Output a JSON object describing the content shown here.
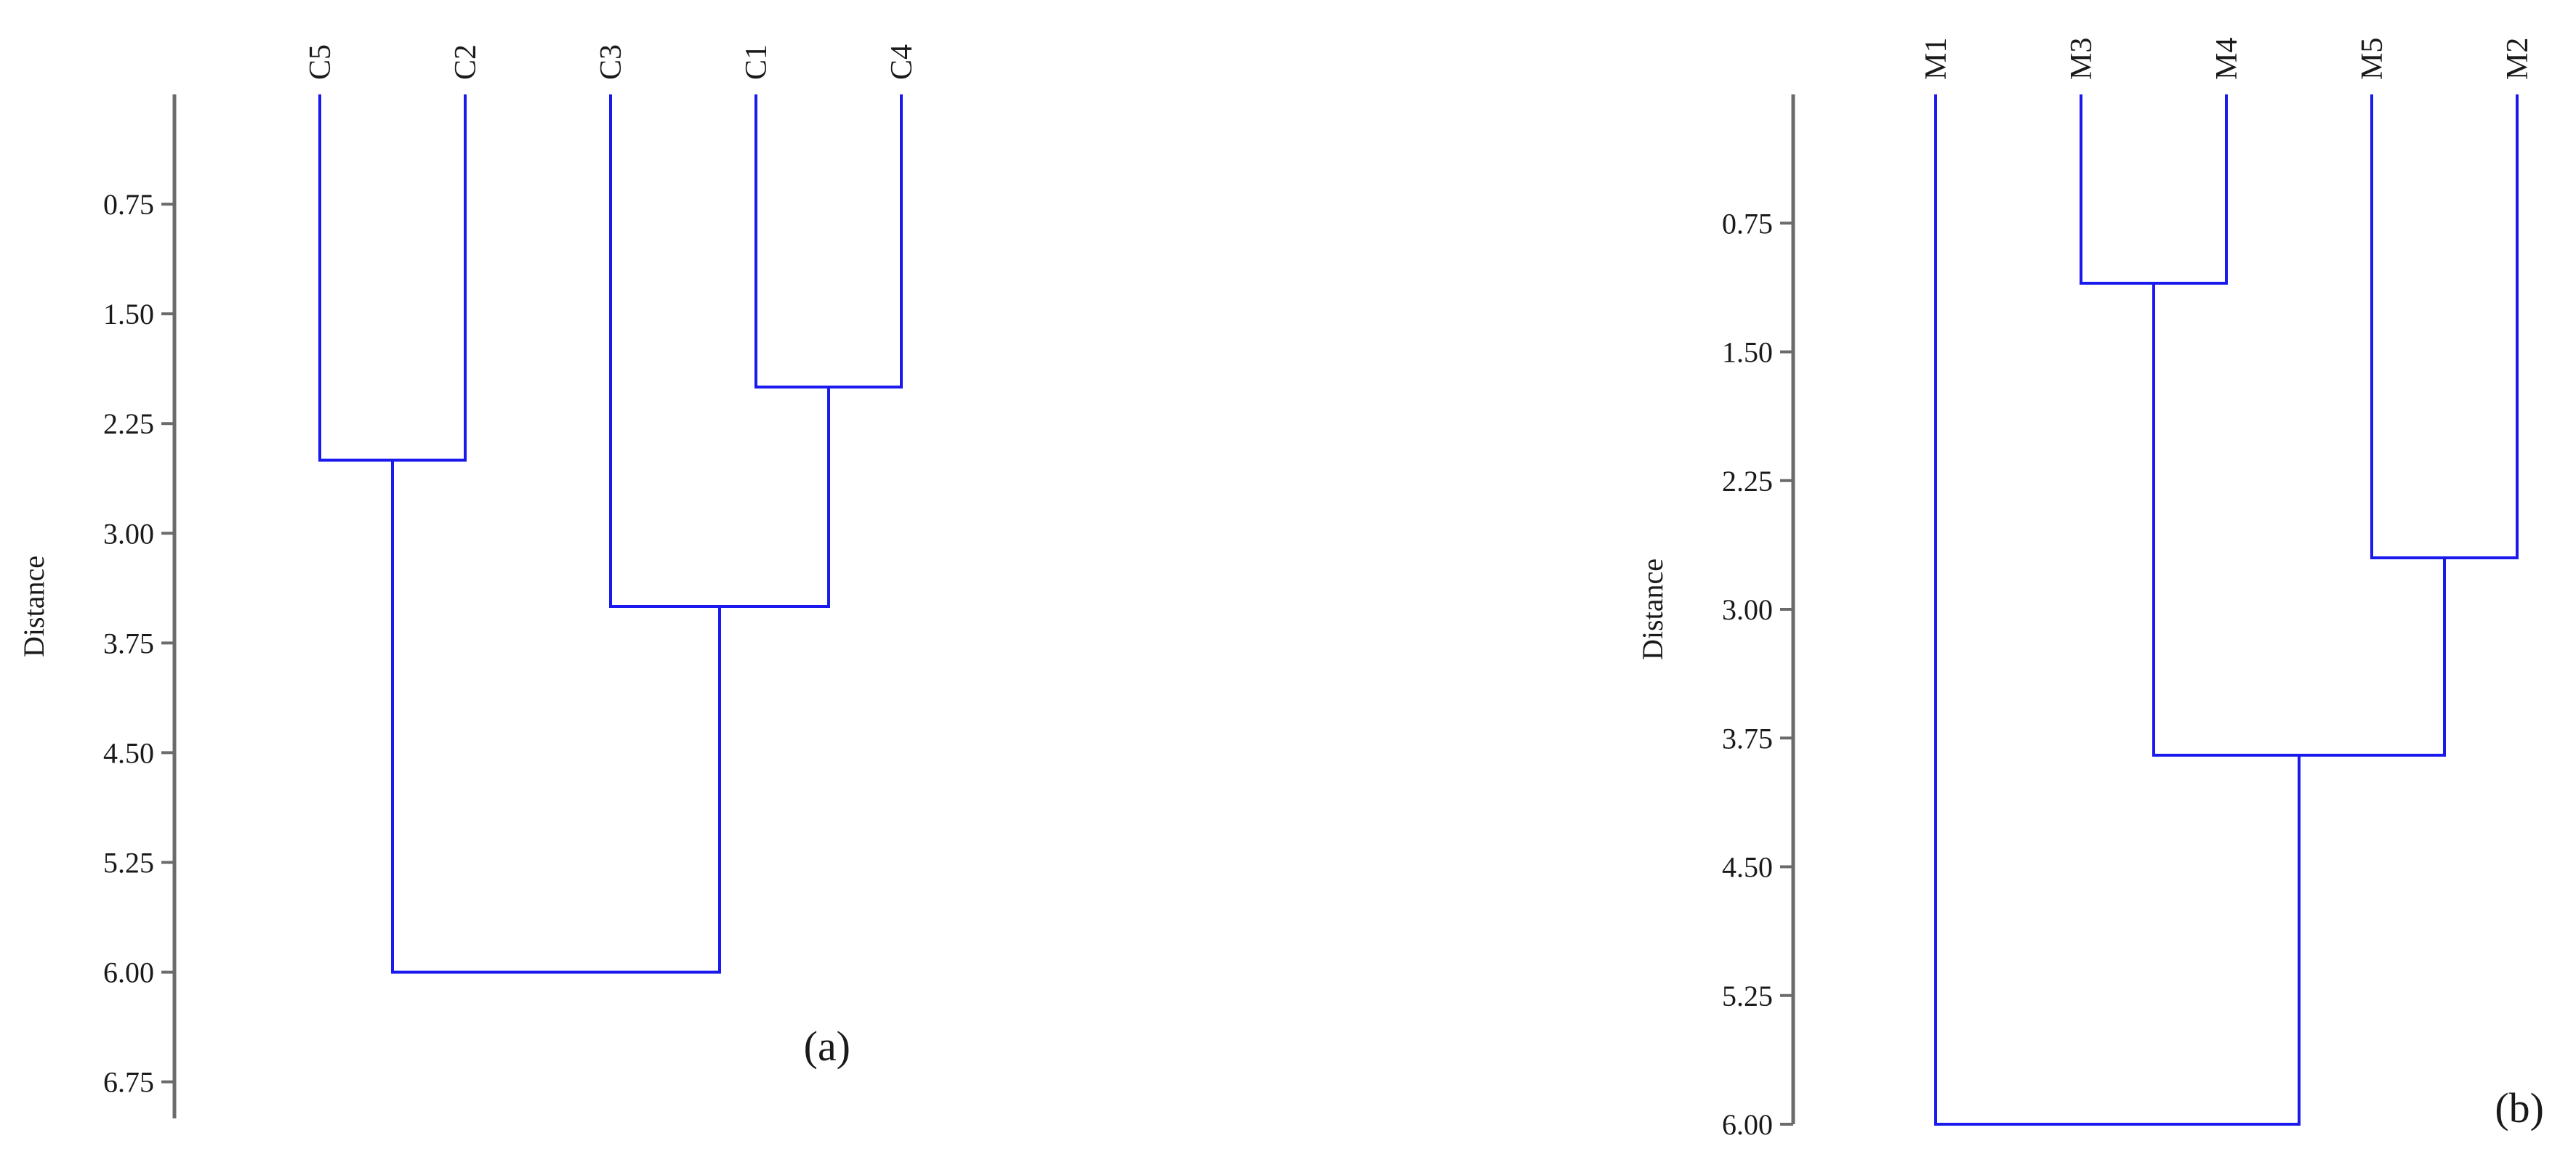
{
  "chart_data": [
    {
      "type": "dendrogram",
      "panel_label": "(a)",
      "ylabel": "Distance",
      "ylim": [
        0,
        7.0
      ],
      "y_ticks": [
        "0.75",
        "1.50",
        "2.25",
        "3.00",
        "3.75",
        "4.50",
        "5.25",
        "6.00",
        "6.75"
      ],
      "leaves": [
        "C5",
        "C2",
        "C3",
        "C1",
        "C4"
      ],
      "merges": [
        {
          "left": "C1",
          "right": "C4",
          "height": 2.0
        },
        {
          "left": "C5",
          "right": "C2",
          "height": 2.5
        },
        {
          "left": "C3",
          "right": "C1+C4",
          "height": 3.5
        },
        {
          "left": "C5+C2",
          "right": "C3+C1+C4",
          "height": 6.0
        }
      ],
      "line_color": "#1a1aee",
      "axis_color": "#6b6b6b"
    },
    {
      "type": "dendrogram",
      "panel_label": "(b)",
      "ylabel": "Distance",
      "ylim": [
        0,
        6.0
      ],
      "y_ticks": [
        "0.75",
        "1.50",
        "2.25",
        "3.00",
        "3.75",
        "4.50",
        "5.25",
        "6.00"
      ],
      "leaves": [
        "M1",
        "M3",
        "M4",
        "M5",
        "M2"
      ],
      "merges": [
        {
          "left": "M3",
          "right": "M4",
          "height": 1.1
        },
        {
          "left": "M5",
          "right": "M2",
          "height": 2.7
        },
        {
          "left": "M3+M4",
          "right": "M5+M2",
          "height": 3.85
        },
        {
          "left": "M1",
          "right": "M3+M4+M5+M2",
          "height": 6.0
        }
      ],
      "line_color": "#1a1aee",
      "axis_color": "#6b6b6b"
    }
  ]
}
